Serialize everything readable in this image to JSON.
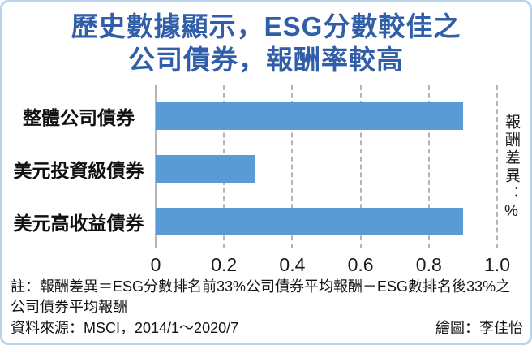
{
  "frame": {
    "background": "#ffffff",
    "border_color": "#b9d4ea"
  },
  "title": {
    "line1": "歷史數據顯示，ESG分數較佳之",
    "line2": "公司債券，報酬率較高",
    "color": "#305ea8"
  },
  "chart_data": {
    "type": "bar",
    "orientation": "horizontal",
    "title": "歷史數據顯示，ESG分數較佳之公司債券，報酬率較高",
    "categories": [
      "整體公司債券",
      "美元投資級債券",
      "美元高收益債券"
    ],
    "values": [
      0.9,
      0.29,
      0.9
    ],
    "xlim": [
      0,
      1.0
    ],
    "xticks": [
      0,
      0.2,
      0.4,
      0.6,
      0.8,
      1.0
    ],
    "xtick_labels": [
      "0",
      "0.2",
      "0.4",
      "0.6",
      "0.8",
      "1.0"
    ],
    "right_axis_label": "報酬差異：%",
    "bar_color": "#5b9bd5",
    "grid": "vertical-dashed",
    "legend": "none"
  },
  "notes": {
    "note_line1": "註：報酬差異＝ESG分數排名前33%公司債券平均報酬－ESG數排名後33%之",
    "note_line2": "公司債券平均報酬",
    "source": "資料來源：MSCI，2014/1～2020/7",
    "credit": "繪圖：李佳怡"
  }
}
